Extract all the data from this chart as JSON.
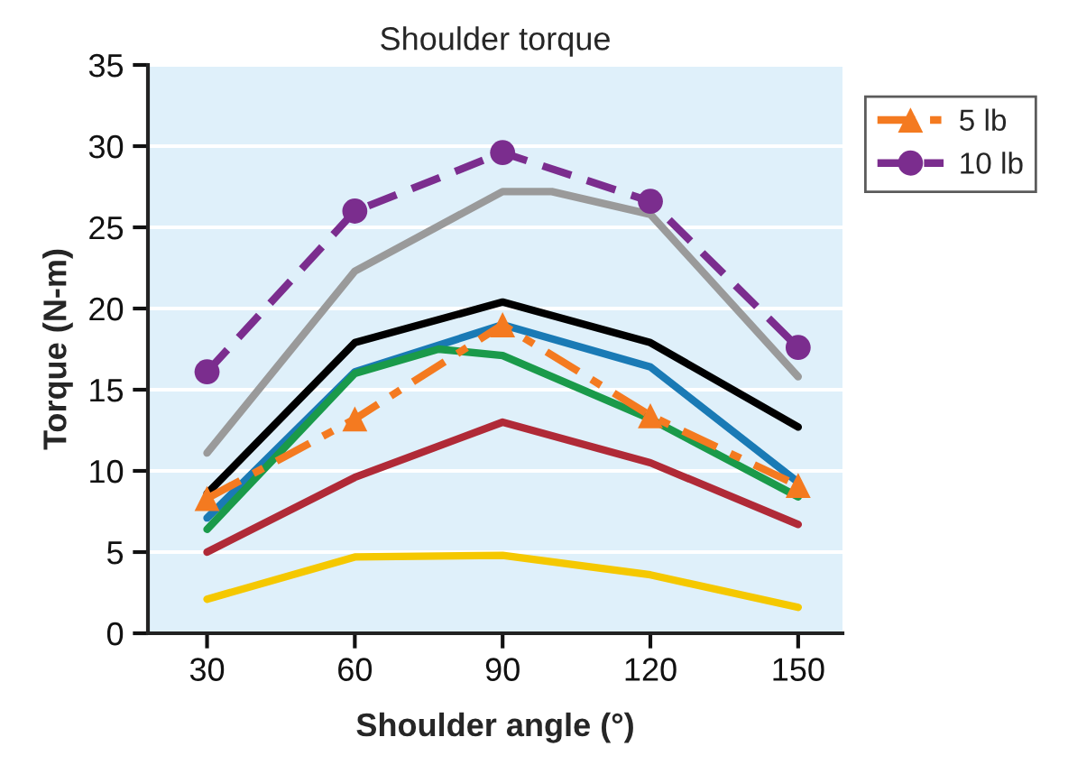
{
  "chart_data": {
    "type": "line",
    "title": "Shoulder torque",
    "xlabel": "Shoulder angle (°)",
    "ylabel": "Torque (N-m)",
    "x": [
      30,
      60,
      90,
      120,
      150
    ],
    "xlim": [
      18,
      159
    ],
    "xticks": [
      30,
      60,
      90,
      120,
      150
    ],
    "ylim": [
      0,
      35
    ],
    "yticks": [
      0,
      5,
      10,
      15,
      20,
      25,
      30,
      35
    ],
    "grid": "y",
    "legend": "top right",
    "series": [
      {
        "color": "#9a9a9a",
        "x": [
          30,
          60,
          90,
          100,
          120,
          150
        ],
        "values": [
          11.1,
          22.3,
          27.2,
          27.2,
          25.8,
          15.8
        ]
      },
      {
        "color": "#000000",
        "values": [
          8.6,
          17.9,
          20.4,
          17.9,
          12.7
        ]
      },
      {
        "color": "#1a7ab5",
        "values": [
          7.1,
          16.1,
          19.0,
          16.4,
          9.3
        ]
      },
      {
        "color": "#1a9a4a",
        "x": [
          30,
          60,
          77,
          90,
          120,
          150
        ],
        "values": [
          6.4,
          16.0,
          17.5,
          17.1,
          13.2,
          8.4
        ]
      },
      {
        "color": "#b02a37",
        "values": [
          5.0,
          9.6,
          13.0,
          10.5,
          6.7
        ]
      },
      {
        "color": "#f5c800",
        "values": [
          2.1,
          4.7,
          4.8,
          3.6,
          1.6
        ]
      },
      {
        "name": "5 lb",
        "color": "#f47a20",
        "marker": "triangle",
        "line_style": "dashdot",
        "values": [
          8.3,
          13.2,
          19.0,
          13.4,
          9.1
        ]
      },
      {
        "name": "10 lb",
        "color": "#7b2d8e",
        "marker": "circle",
        "line_style": "dashed",
        "values": [
          16.1,
          26.0,
          29.6,
          26.6,
          17.6
        ]
      }
    ]
  }
}
